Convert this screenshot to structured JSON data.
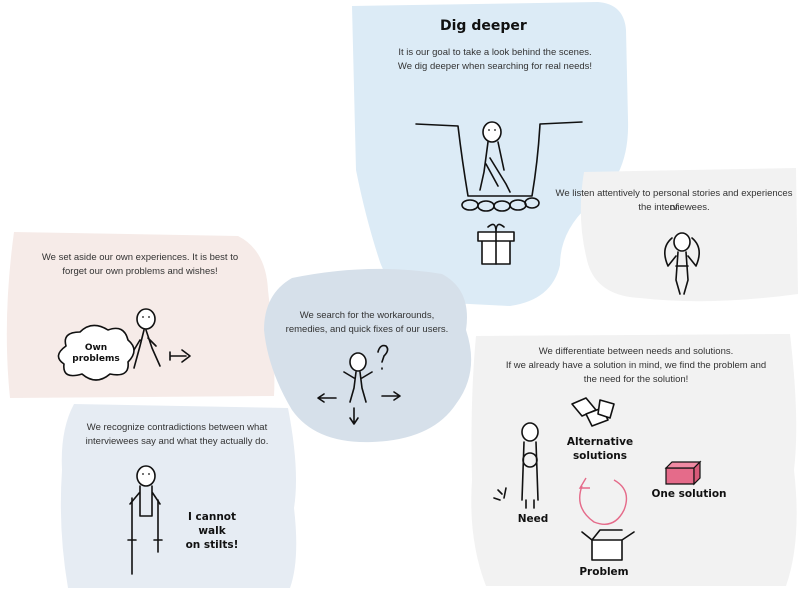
{
  "colors": {
    "blue_panel": "#dcebf6",
    "pink_panel": "#f6ebe8",
    "steel_panel": "#d6e0ea",
    "gray_panel": "#f2f2f2",
    "lightblue_panel": "#e6ecf3",
    "accent_pink": "#e56b8a"
  },
  "dig": {
    "title": "Dig deeper",
    "line1": "It is our goal to take a look behind the scenes.",
    "line2": "We dig deeper when searching for real needs!"
  },
  "listen": {
    "line1": "We listen attentively to personal stories and experiences of",
    "line2": "the interviewees."
  },
  "aside": {
    "line1": "We set aside our own experiences. It is best to",
    "line2": "forget our own problems and wishes!",
    "bubble_line1": "Own",
    "bubble_line2": "problems"
  },
  "search": {
    "line1": "We search for the workarounds,",
    "line2": "remedies, and quick fixes of our users."
  },
  "contradict": {
    "line1": "We recognize contradictions between what",
    "line2": "interviewees say and what they actually do.",
    "hand_line1": "I cannot",
    "hand_line2": "walk",
    "hand_line3": "on stilts!"
  },
  "needs": {
    "line1": "We differentiate between needs and solutions.",
    "line2": "If we already have a solution in mind, we find the problem and",
    "line3": "the need for the solution!",
    "alt_line1": "Alternative",
    "alt_line2": "solutions",
    "one_solution": "One solution",
    "need": "Need",
    "problem": "Problem"
  }
}
